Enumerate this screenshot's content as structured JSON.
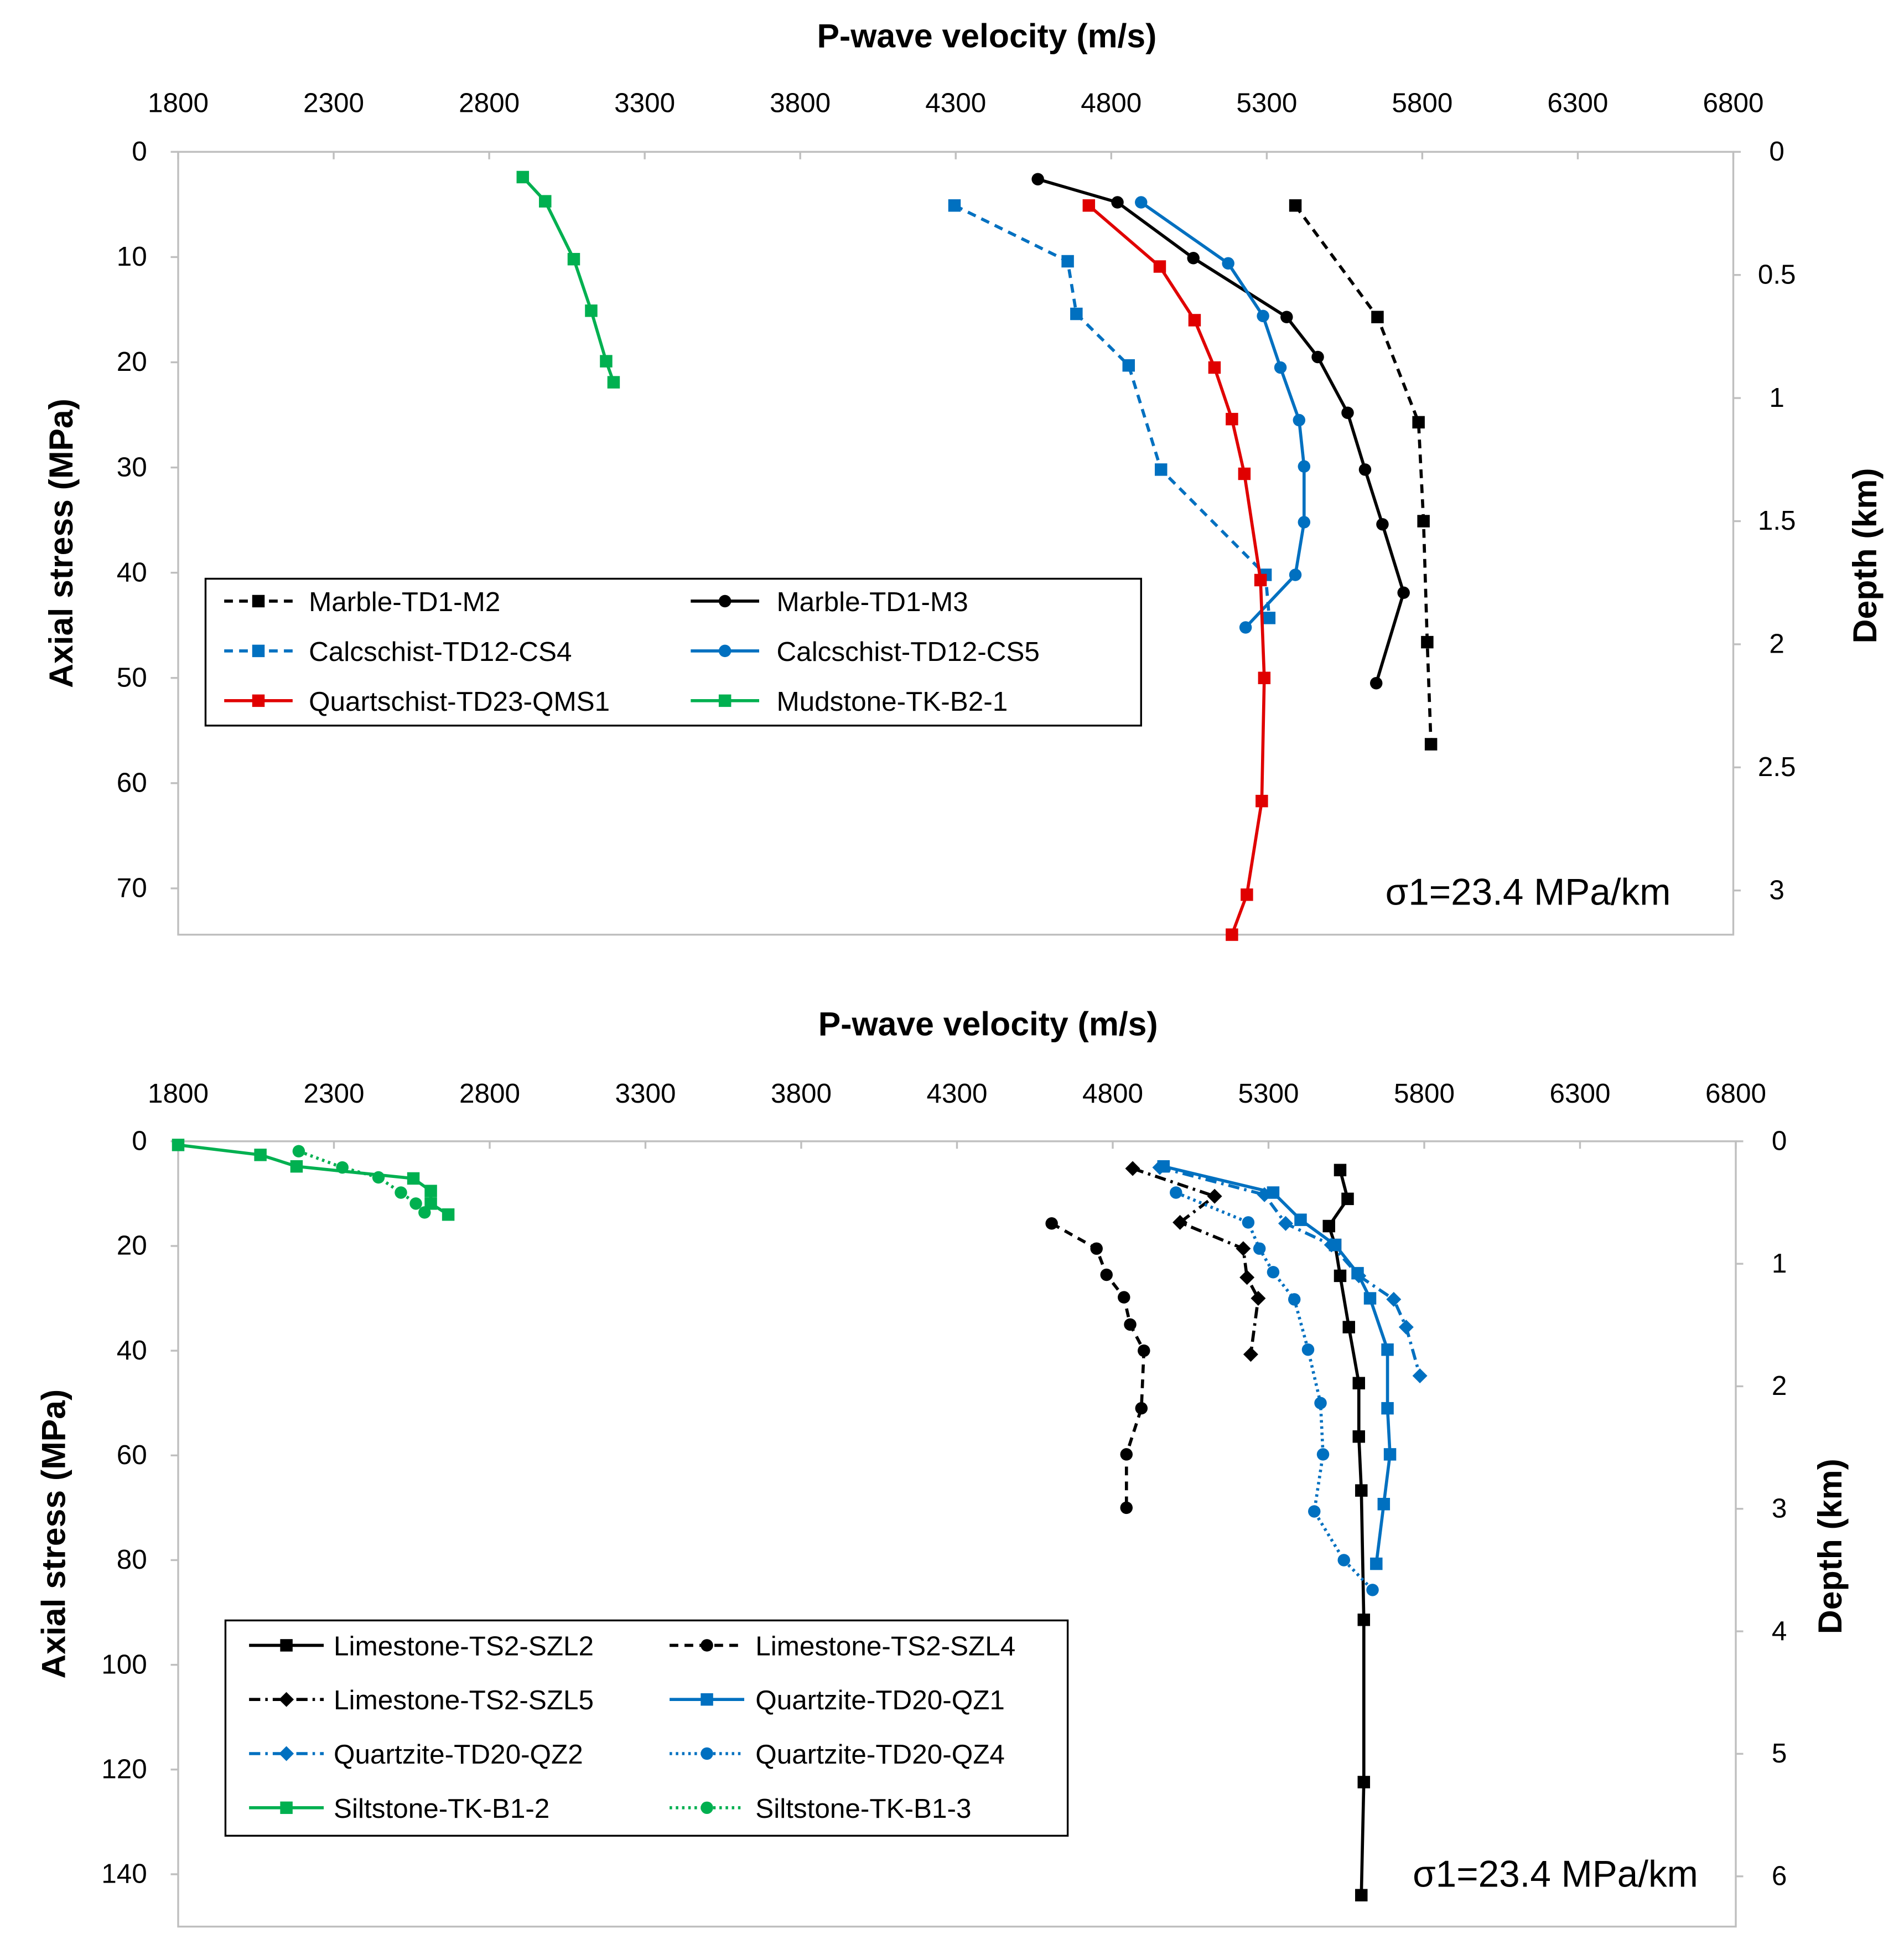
{
  "chart_data": [
    {
      "type": "line",
      "title": "P-wave velocity (m/s)",
      "xlabel": "P-wave velocity (m/s)",
      "ylabel": "Axial stress (MPa)",
      "y2label": "Depth (km)",
      "xlim": [
        1800,
        6800
      ],
      "ylim": [
        0,
        74.4
      ],
      "y_inverted": true,
      "x_axis_position": "top",
      "xticks": [
        1800,
        2300,
        2800,
        3300,
        3800,
        4300,
        4800,
        5300,
        5800,
        6300,
        6800
      ],
      "yticks": [
        0,
        10,
        20,
        30,
        40,
        50,
        60,
        70
      ],
      "y2ticks": [
        "0",
        "0.5",
        "1",
        "1.5",
        "2",
        "2.5",
        "3"
      ],
      "y2_step_km": 0.5,
      "gradient_mpa_per_km": 23.4,
      "annotation": "σ1=23.4 MPa/km",
      "legend_position": "center-left",
      "series": [
        {
          "name": "Marble-TD1-M2",
          "color": "#000000",
          "dash": "dashed",
          "marker": "square",
          "x": [
            5392,
            5656,
            5788,
            5804,
            5816,
            5828
          ],
          "y": [
            5.1,
            15.7,
            25.7,
            35.1,
            46.6,
            56.3
          ]
        },
        {
          "name": "Marble-TD1-M3",
          "color": "#000000",
          "dash": "solid",
          "marker": "circle",
          "x": [
            4564,
            4820,
            5064,
            5364,
            5464,
            5560,
            5616,
            5672,
            5740,
            5652
          ],
          "y": [
            2.6,
            4.8,
            10.1,
            15.7,
            19.5,
            24.8,
            30.2,
            35.4,
            41.9,
            50.5
          ]
        },
        {
          "name": "Calcschist-TD12-CS4",
          "color": "#0070C0",
          "dash": "dashed",
          "marker": "square",
          "x": [
            4296,
            4660,
            4688,
            4856,
            4960,
            5296,
            5308
          ],
          "y": [
            5.1,
            10.4,
            15.4,
            20.3,
            30.2,
            40.2,
            44.3
          ]
        },
        {
          "name": "Calcschist-TD12-CS5",
          "color": "#0070C0",
          "dash": "solid",
          "marker": "circle",
          "x": [
            4896,
            5176,
            5288,
            5344,
            5404,
            5420,
            5420,
            5392,
            5232
          ],
          "y": [
            4.8,
            10.6,
            15.6,
            20.5,
            25.5,
            29.9,
            35.2,
            40.2,
            45.2
          ]
        },
        {
          "name": "Quartschist-TD23-QMS1",
          "color": "#E00000",
          "dash": "solid",
          "marker": "square",
          "x": [
            4728,
            4956,
            5068,
            5132,
            5188,
            5228,
            5280,
            5292,
            5284,
            5236,
            5188
          ],
          "y": [
            5.1,
            10.9,
            16.0,
            20.5,
            25.4,
            30.6,
            40.7,
            50.0,
            61.7,
            70.6,
            74.4
          ]
        },
        {
          "name": "Mudstone-TK-B2-1",
          "color": "#00B050",
          "dash": "solid",
          "marker": "square",
          "x": [
            2908,
            2980,
            3072,
            3128,
            3176,
            3200
          ],
          "y": [
            2.4,
            4.7,
            10.2,
            15.1,
            19.9,
            21.9
          ]
        }
      ]
    },
    {
      "type": "line",
      "title": "P-wave velocity (m/s)",
      "xlabel": "P-wave velocity (m/s)",
      "ylabel": "Axial stress (MPa)",
      "y2label": "Depth (km)",
      "xlim": [
        1800,
        6800
      ],
      "ylim": [
        0,
        150
      ],
      "y_inverted": true,
      "x_axis_position": "top",
      "xticks": [
        1800,
        2300,
        2800,
        3300,
        3800,
        4300,
        4800,
        5300,
        5800,
        6300,
        6800
      ],
      "yticks": [
        0,
        20,
        40,
        60,
        80,
        100,
        120,
        140
      ],
      "y2ticks": [
        "0",
        "1",
        "2",
        "3",
        "4",
        "5",
        "6"
      ],
      "y2_step_km": 1,
      "gradient_mpa_per_km": 23.4,
      "annotation": "σ1=23.4 MPa/km",
      "legend_position": "bottom-left",
      "series": [
        {
          "name": "Limestone-TS2-SZL2",
          "color": "#000000",
          "dash": "solid",
          "marker": "square",
          "x": [
            5530,
            5554,
            5494,
            5514,
            5530,
            5558,
            5590,
            5590,
            5598,
            5606,
            5606,
            5598
          ],
          "y": [
            5.5,
            11.0,
            16.2,
            19.8,
            25.7,
            35.5,
            46.2,
            56.4,
            66.7,
            91.4,
            122.4,
            144.0
          ]
        },
        {
          "name": "Limestone-TS2-SZL4",
          "color": "#000000",
          "dash": "dashed",
          "marker": "circle",
          "x": [
            4604,
            4748,
            4780,
            4836,
            4856,
            4900,
            4892,
            4844,
            4844
          ],
          "y": [
            15.7,
            20.5,
            25.5,
            29.8,
            35.0,
            40.0,
            51.0,
            59.8,
            70.0
          ]
        },
        {
          "name": "Limestone-TS2-SZL5",
          "color": "#000000",
          "dash": "dashdot",
          "marker": "diamond",
          "x": [
            4864,
            5127,
            5016,
            5219,
            5231,
            5267,
            5243
          ],
          "y": [
            5.2,
            10.5,
            15.5,
            20.5,
            26.0,
            30.0,
            40.7
          ]
        },
        {
          "name": "Quartzite-TD20-QZ1",
          "color": "#0070C0",
          "dash": "solid",
          "marker": "square",
          "x": [
            4963,
            5315,
            5403,
            5514,
            5586,
            5626,
            5682,
            5682,
            5690,
            5670,
            5646
          ],
          "y": [
            4.8,
            9.8,
            15.0,
            19.8,
            25.2,
            30.0,
            39.8,
            51.0,
            59.8,
            69.3,
            80.7
          ]
        },
        {
          "name": "Quartzite-TD20-QZ2",
          "color": "#0070C0",
          "dash": "dashdot",
          "marker": "diamond",
          "x": [
            4951,
            5287,
            5355,
            5502,
            5590,
            5702,
            5742,
            5786
          ],
          "y": [
            5.0,
            10.2,
            15.7,
            19.8,
            25.7,
            30.2,
            35.5,
            44.8
          ]
        },
        {
          "name": "Quartzite-TD20-QZ4",
          "color": "#0070C0",
          "dash": "dotted",
          "marker": "circle",
          "x": [
            5003,
            5235,
            5271,
            5315,
            5383,
            5427,
            5467,
            5475,
            5447,
            5542,
            5634
          ],
          "y": [
            9.8,
            15.5,
            20.5,
            25.0,
            30.2,
            39.8,
            50.0,
            59.8,
            70.7,
            80.0,
            85.7
          ]
        },
        {
          "name": "Siltstone-TK-B1-2",
          "color": "#00B050",
          "dash": "solid",
          "marker": "square",
          "x": [
            1800,
            2064,
            2180,
            2555,
            2611,
            2611,
            2667
          ],
          "y": [
            0.7,
            2.6,
            4.8,
            7.1,
            9.5,
            11.9,
            14.0
          ]
        },
        {
          "name": "Siltstone-TK-B1-3",
          "color": "#00B050",
          "dash": "dotted",
          "marker": "circle",
          "x": [
            2187,
            2327,
            2443,
            2515,
            2563,
            2591
          ],
          "y": [
            1.9,
            5.0,
            6.9,
            9.8,
            11.9,
            13.6
          ]
        }
      ]
    }
  ]
}
